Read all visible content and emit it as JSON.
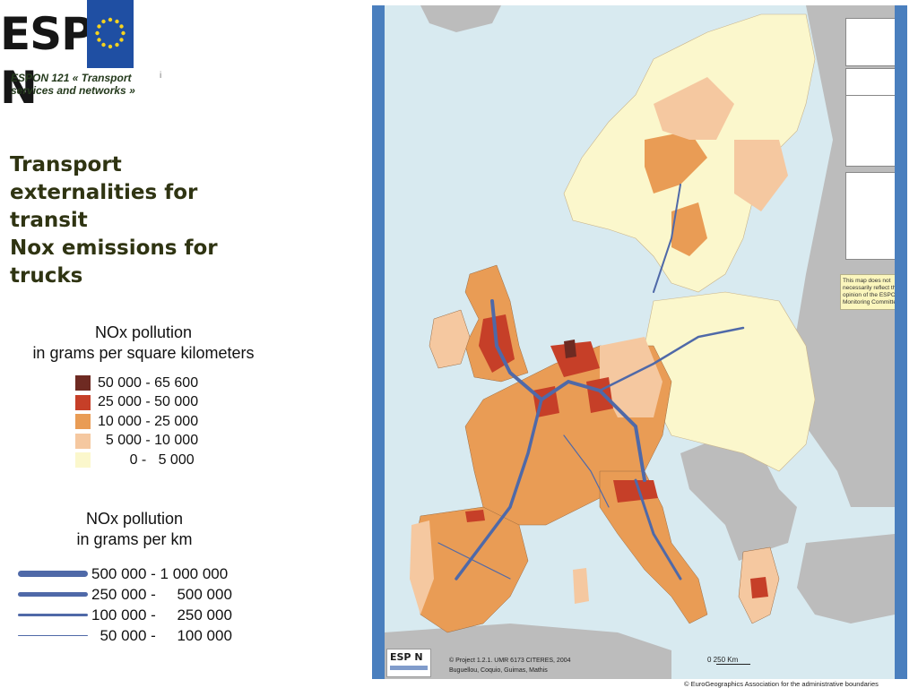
{
  "logo": {
    "left": "ESP",
    "right": "N"
  },
  "subtitle": "ESPON 121 « Transport services and networks »",
  "title_lines": [
    "Transport",
    "externalities for",
    "transit",
    "Nox emissions for",
    "trucks"
  ],
  "legend_area": {
    "title_line1": "NOx pollution",
    "title_line2": "in grams per square kilometers",
    "items": [
      {
        "label": "50 000 - 65 600",
        "color": "#6e2a22"
      },
      {
        "label": "25 000 - 50 000",
        "color": "#c63f28"
      },
      {
        "label": "10 000 - 25 000",
        "color": "#e99c55"
      },
      {
        "label": "  5 000 - 10 000",
        "color": "#f5c8a0"
      },
      {
        "label": "        0 -   5 000",
        "color": "#fbf7cc"
      }
    ]
  },
  "legend_line": {
    "title_line1": "NOx pollution",
    "title_line2": "in grams per km",
    "items": [
      {
        "label": "500 000 - 1 000 000",
        "weight": "heaviest"
      },
      {
        "label": "250 000 -     500 000",
        "weight": "heavy"
      },
      {
        "label": "100 000 -     250 000",
        "weight": "medium"
      },
      {
        "label": "  50 000 -     100 000",
        "weight": "thin"
      }
    ]
  },
  "map": {
    "disclaimer": "This map does not necessarily reflect the opinion of the ESPON Monitoring Committee",
    "logo_text": "ESP N",
    "credit_line1": "© Project 1.2.1. UMR 6173 CITERES, 2004",
    "credit_line2": "Buguellou, Coquio, Guimas, Mathis",
    "scale_label": "0       250 Km",
    "copyright": "© EuroGeographics Association for the administrative boundaries"
  },
  "colors": {
    "sea": "#d8eaf0",
    "non_espon_land": "#bcbcbc",
    "frame": "#4a7fbe",
    "route": "#4f69a8"
  }
}
